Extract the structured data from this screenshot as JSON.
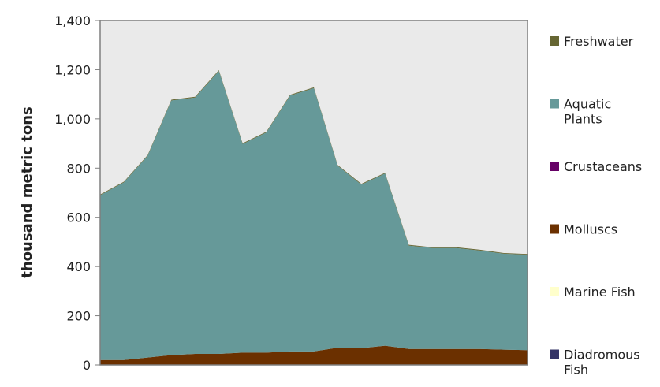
{
  "chart_data": {
    "type": "area",
    "stacked": true,
    "title": "",
    "xlabel": "",
    "ylabel": "thousand metric tons",
    "ylim": [
      0,
      1400
    ],
    "yticks": [
      0,
      200,
      400,
      600,
      800,
      1000,
      1200,
      1400
    ],
    "ytick_labels": [
      "0",
      "200",
      "400",
      "600",
      "800",
      "1,000",
      "1,200",
      "1,400"
    ],
    "x_count": 19,
    "grid": false,
    "legend_position": "right",
    "legend_order": [
      "Freshwater",
      "Aquatic Plants",
      "Crustaceans",
      "Molluscs",
      "Marine Fish",
      "Diadromous Fish"
    ],
    "series": [
      {
        "name": "Diadromous Fish",
        "color": "#333366",
        "label_lines": [
          "Diadromous",
          "Fish"
        ],
        "values": [
          0,
          0,
          0,
          0,
          0,
          0,
          0,
          0,
          0,
          0,
          0,
          0,
          0,
          0,
          0,
          0,
          0,
          0,
          0
        ]
      },
      {
        "name": "Marine Fish",
        "color": "#ffffcc",
        "label_lines": [
          "Marine Fish"
        ],
        "values": [
          0,
          0,
          0,
          0,
          0,
          0,
          0,
          0,
          0,
          0,
          0,
          0,
          0,
          0,
          0,
          0,
          0,
          0,
          0
        ]
      },
      {
        "name": "Molluscs",
        "color": "#6b3000",
        "label_lines": [
          "Molluscs"
        ],
        "values": [
          20,
          20,
          30,
          40,
          45,
          45,
          50,
          50,
          55,
          55,
          70,
          68,
          78,
          65,
          65,
          65,
          65,
          62,
          60
        ]
      },
      {
        "name": "Crustaceans",
        "color": "#660066",
        "label_lines": [
          "Crustaceans"
        ],
        "values": [
          0,
          0,
          0,
          0,
          0,
          0,
          0,
          0,
          0,
          0,
          0,
          0,
          0,
          0,
          0,
          0,
          0,
          0,
          0
        ]
      },
      {
        "name": "Aquatic Plants",
        "color": "#669999",
        "label_lines": [
          "Aquatic",
          "Plants"
        ],
        "values": [
          670,
          722,
          820,
          1035,
          1042,
          1150,
          848,
          895,
          1040,
          1070,
          740,
          665,
          700,
          420,
          410,
          410,
          400,
          390,
          388
        ]
      },
      {
        "name": "Freshwater",
        "color": "#666633",
        "label_lines": [
          "Freshwater"
        ],
        "values": [
          3,
          3,
          3,
          3,
          3,
          3,
          3,
          3,
          3,
          3,
          3,
          3,
          3,
          3,
          3,
          3,
          3,
          3,
          3
        ]
      }
    ]
  }
}
